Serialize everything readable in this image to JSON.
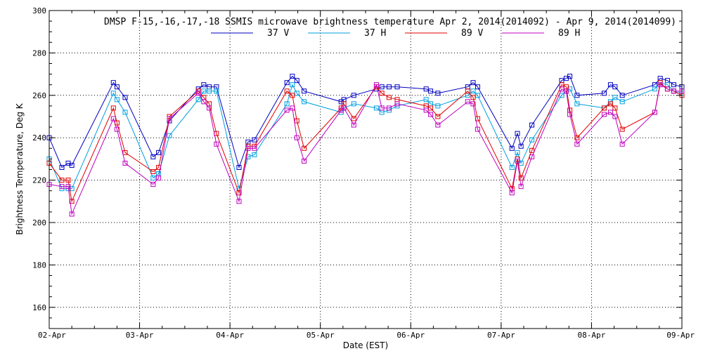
{
  "chart_data": {
    "type": "line",
    "title": "DMSP F-15,-16,-17,-18 SSMIS microwave brightness temperature Apr  2, 2014(2014092) - Apr  9, 2014(2014099)",
    "xlabel": "Date (EST)",
    "ylabel": "Brightness Temperature, Deg K",
    "xlim": [
      0,
      7
    ],
    "ylim": [
      150,
      300
    ],
    "x_ticks": [
      {
        "value": 0,
        "label": "02-Apr"
      },
      {
        "value": 1,
        "label": "03-Apr"
      },
      {
        "value": 2,
        "label": "04-Apr"
      },
      {
        "value": 3,
        "label": "05-Apr"
      },
      {
        "value": 4,
        "label": "06-Apr"
      },
      {
        "value": 5,
        "label": "07-Apr"
      },
      {
        "value": 6,
        "label": "08-Apr"
      },
      {
        "value": 7,
        "label": "09-Apr"
      }
    ],
    "y_ticks": [
      160,
      180,
      200,
      220,
      240,
      260,
      280,
      300
    ],
    "grid": true,
    "legend_position": "top-center",
    "series": [
      {
        "name": "37 V",
        "color": "#0000c0",
        "points": [
          [
            0,
            240
          ],
          [
            0.14,
            226
          ],
          [
            0.21,
            228
          ],
          [
            0.25,
            227
          ],
          [
            0.71,
            266
          ],
          [
            0.75,
            264
          ],
          [
            0.84,
            259
          ],
          [
            1.15,
            231
          ],
          [
            1.21,
            233
          ],
          [
            1.33,
            248
          ],
          [
            1.65,
            263
          ],
          [
            1.71,
            265
          ],
          [
            1.77,
            264
          ],
          [
            1.85,
            264
          ],
          [
            2.1,
            226
          ],
          [
            2.2,
            238
          ],
          [
            2.27,
            239
          ],
          [
            2.63,
            266
          ],
          [
            2.69,
            269
          ],
          [
            2.74,
            267
          ],
          [
            2.82,
            262
          ],
          [
            3.23,
            257
          ],
          [
            3.26,
            258
          ],
          [
            3.37,
            260
          ],
          [
            3.62,
            263
          ],
          [
            3.68,
            264
          ],
          [
            3.76,
            264
          ],
          [
            3.85,
            264
          ],
          [
            4.17,
            263
          ],
          [
            4.22,
            262
          ],
          [
            4.3,
            261
          ],
          [
            4.63,
            264
          ],
          [
            4.69,
            266
          ],
          [
            4.74,
            264
          ],
          [
            5.12,
            235
          ],
          [
            5.18,
            242
          ],
          [
            5.22,
            236
          ],
          [
            5.34,
            246
          ],
          [
            5.67,
            267
          ],
          [
            5.72,
            268
          ],
          [
            5.76,
            269
          ],
          [
            5.84,
            260
          ],
          [
            6.14,
            261
          ],
          [
            6.21,
            265
          ],
          [
            6.26,
            264
          ],
          [
            6.34,
            260
          ],
          [
            6.7,
            265
          ],
          [
            6.76,
            268
          ],
          [
            6.84,
            267
          ],
          [
            6.91,
            265
          ],
          [
            7,
            264
          ]
        ]
      },
      {
        "name": "37 H",
        "color": "#00a0e0",
        "points": [
          [
            0,
            230
          ],
          [
            0.14,
            216
          ],
          [
            0.21,
            216
          ],
          [
            0.25,
            216
          ],
          [
            0.71,
            261
          ],
          [
            0.75,
            258
          ],
          [
            0.84,
            252
          ],
          [
            1.15,
            221
          ],
          [
            1.21,
            223
          ],
          [
            1.33,
            241
          ],
          [
            1.65,
            258
          ],
          [
            1.71,
            262
          ],
          [
            1.77,
            262
          ],
          [
            1.85,
            262
          ],
          [
            2.1,
            216
          ],
          [
            2.2,
            231
          ],
          [
            2.27,
            232
          ],
          [
            2.63,
            256
          ],
          [
            2.69,
            265
          ],
          [
            2.74,
            261
          ],
          [
            2.82,
            257
          ],
          [
            3.23,
            252
          ],
          [
            3.26,
            254
          ],
          [
            3.37,
            256
          ],
          [
            3.62,
            254
          ],
          [
            3.68,
            252
          ],
          [
            3.76,
            253
          ],
          [
            3.85,
            255
          ],
          [
            4.17,
            258
          ],
          [
            4.22,
            256
          ],
          [
            4.3,
            255
          ],
          [
            4.63,
            260
          ],
          [
            4.69,
            262
          ],
          [
            4.74,
            260
          ],
          [
            5.12,
            226
          ],
          [
            5.18,
            233
          ],
          [
            5.22,
            228
          ],
          [
            5.34,
            239
          ],
          [
            5.67,
            260
          ],
          [
            5.72,
            262
          ],
          [
            5.76,
            263
          ],
          [
            5.84,
            256
          ],
          [
            6.14,
            254
          ],
          [
            6.21,
            257
          ],
          [
            6.26,
            259
          ],
          [
            6.34,
            257
          ],
          [
            6.7,
            263
          ],
          [
            6.76,
            266
          ],
          [
            6.84,
            265
          ],
          [
            6.91,
            262
          ],
          [
            7,
            261
          ]
        ]
      },
      {
        "name": "89 V",
        "color": "#e00000",
        "points": [
          [
            0,
            228
          ],
          [
            0.14,
            220
          ],
          [
            0.21,
            220
          ],
          [
            0.25,
            210
          ],
          [
            0.71,
            254
          ],
          [
            0.75,
            247
          ],
          [
            0.84,
            233
          ],
          [
            1.15,
            224
          ],
          [
            1.21,
            226
          ],
          [
            1.33,
            250
          ],
          [
            1.65,
            262
          ],
          [
            1.71,
            259
          ],
          [
            1.77,
            256
          ],
          [
            1.85,
            242
          ],
          [
            2.1,
            214
          ],
          [
            2.2,
            236
          ],
          [
            2.27,
            236
          ],
          [
            2.63,
            262
          ],
          [
            2.69,
            260
          ],
          [
            2.74,
            248
          ],
          [
            2.82,
            235
          ],
          [
            3.23,
            254
          ],
          [
            3.26,
            256
          ],
          [
            3.37,
            249
          ],
          [
            3.62,
            264
          ],
          [
            3.68,
            261
          ],
          [
            3.76,
            259
          ],
          [
            3.85,
            258
          ],
          [
            4.17,
            255
          ],
          [
            4.22,
            254
          ],
          [
            4.3,
            250
          ],
          [
            4.63,
            262
          ],
          [
            4.69,
            259
          ],
          [
            4.74,
            249
          ],
          [
            5.12,
            216
          ],
          [
            5.18,
            230
          ],
          [
            5.22,
            221
          ],
          [
            5.34,
            234
          ],
          [
            5.67,
            265
          ],
          [
            5.72,
            264
          ],
          [
            5.76,
            253
          ],
          [
            5.84,
            240
          ],
          [
            6.14,
            254
          ],
          [
            6.21,
            256
          ],
          [
            6.26,
            254
          ],
          [
            6.34,
            244
          ],
          [
            6.7,
            252
          ],
          [
            6.76,
            266
          ],
          [
            6.84,
            263
          ],
          [
            6.91,
            262
          ],
          [
            7,
            260
          ]
        ]
      },
      {
        "name": "89 H",
        "color": "#c000c0",
        "points": [
          [
            0,
            218
          ],
          [
            0.14,
            217
          ],
          [
            0.21,
            217
          ],
          [
            0.25,
            204
          ],
          [
            0.71,
            249
          ],
          [
            0.75,
            244
          ],
          [
            0.84,
            228
          ],
          [
            1.15,
            218
          ],
          [
            1.21,
            221
          ],
          [
            1.33,
            249
          ],
          [
            1.65,
            261
          ],
          [
            1.71,
            257
          ],
          [
            1.77,
            254
          ],
          [
            1.85,
            237
          ],
          [
            2.1,
            210
          ],
          [
            2.2,
            235
          ],
          [
            2.27,
            235
          ],
          [
            2.63,
            253
          ],
          [
            2.69,
            254
          ],
          [
            2.74,
            240
          ],
          [
            2.82,
            229
          ],
          [
            3.23,
            253
          ],
          [
            3.26,
            254
          ],
          [
            3.37,
            246
          ],
          [
            3.62,
            265
          ],
          [
            3.68,
            254
          ],
          [
            3.76,
            254
          ],
          [
            3.85,
            256
          ],
          [
            4.17,
            253
          ],
          [
            4.22,
            251
          ],
          [
            4.3,
            246
          ],
          [
            4.63,
            257
          ],
          [
            4.69,
            256
          ],
          [
            4.74,
            244
          ],
          [
            5.12,
            214
          ],
          [
            5.18,
            229
          ],
          [
            5.22,
            217
          ],
          [
            5.34,
            231
          ],
          [
            5.67,
            263
          ],
          [
            5.72,
            262
          ],
          [
            5.76,
            251
          ],
          [
            5.84,
            237
          ],
          [
            6.14,
            251
          ],
          [
            6.21,
            252
          ],
          [
            6.26,
            250
          ],
          [
            6.34,
            237
          ],
          [
            6.7,
            252
          ],
          [
            6.76,
            265
          ],
          [
            6.84,
            263
          ],
          [
            6.91,
            262
          ],
          [
            7,
            262
          ]
        ]
      }
    ]
  }
}
